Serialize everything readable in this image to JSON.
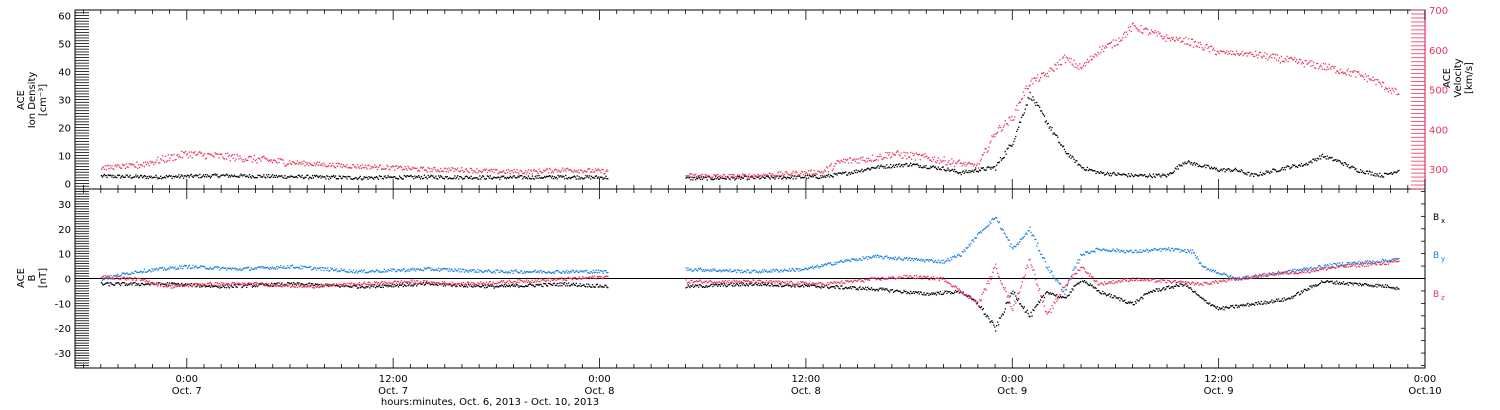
{
  "colors": {
    "black": "#000000",
    "pink": "#e8365d",
    "blue": "#1a7fe0"
  },
  "chart_data": [
    {
      "type": "scatter",
      "ylabel": [
        "ACE",
        "Ion Density",
        "[cm⁻³]"
      ],
      "y2label": [
        "ACE",
        "Velocity",
        "[km/s]"
      ],
      "ylim": [
        -2,
        62
      ],
      "y2lim": [
        250,
        700
      ],
      "yticks": [
        0,
        10,
        20,
        30,
        40,
        50,
        60
      ],
      "y2ticks": [
        300,
        400,
        500,
        600,
        700
      ],
      "xlim": [
        -6.5,
        72
      ],
      "series": [
        {
          "color": "#000000",
          "axis": "left",
          "segments": [
            [
              -5,
              2.8
            ],
            [
              -2,
              2.5
            ],
            [
              2,
              3
            ],
            [
              6,
              2.6
            ],
            [
              10,
              2.2
            ],
            [
              14,
              2.5
            ],
            [
              18,
              2.3
            ],
            [
              22,
              2.5
            ],
            [
              24.5,
              2.3
            ]
          ]
        },
        {
          "color": "#000000",
          "axis": "left",
          "segments": [
            [
              29,
              2.0
            ],
            [
              33,
              2.2
            ],
            [
              37,
              2.6
            ],
            [
              38.5,
              4
            ],
            [
              40,
              6
            ],
            [
              42,
              7
            ],
            [
              44,
              5.5
            ],
            [
              45,
              4
            ],
            [
              47,
              6
            ],
            [
              48,
              15
            ],
            [
              49,
              32
            ],
            [
              50,
              22
            ],
            [
              51,
              12
            ],
            [
              52,
              6
            ],
            [
              53,
              4
            ],
            [
              55,
              3
            ],
            [
              57,
              3
            ],
            [
              58,
              8
            ],
            [
              60,
              5
            ],
            [
              61,
              5
            ],
            [
              62,
              3
            ],
            [
              64,
              6
            ],
            [
              65,
              7
            ],
            [
              66,
              10
            ],
            [
              67,
              8
            ],
            [
              68,
              5
            ],
            [
              69.5,
              3
            ],
            [
              70,
              4
            ],
            [
              70.5,
              5
            ]
          ]
        },
        {
          "color": "#e8365d",
          "axis": "right",
          "segments": [
            [
              -5,
              305
            ],
            [
              -3,
              310
            ],
            [
              0,
              340
            ],
            [
              3,
              330
            ],
            [
              6,
              318
            ],
            [
              9,
              310
            ],
            [
              12,
              305
            ],
            [
              14,
              300
            ],
            [
              16,
              300
            ],
            [
              18,
              295
            ],
            [
              20,
              295
            ],
            [
              22,
              300
            ],
            [
              24.5,
              295
            ]
          ]
        },
        {
          "color": "#e8365d",
          "axis": "right",
          "segments": [
            [
              29,
              285
            ],
            [
              32,
              283
            ],
            [
              35,
              290
            ],
            [
              37,
              295
            ],
            [
              38,
              320
            ],
            [
              40,
              330
            ],
            [
              41,
              340
            ],
            [
              43,
              330
            ],
            [
              45,
              315
            ],
            [
              46,
              310
            ],
            [
              47,
              395
            ],
            [
              48,
              430
            ],
            [
              48.5,
              480
            ],
            [
              49,
              520
            ],
            [
              50,
              540
            ],
            [
              51,
              580
            ],
            [
              52,
              555
            ],
            [
              53,
              600
            ],
            [
              54,
              620
            ],
            [
              55,
              660
            ],
            [
              56,
              645
            ],
            [
              57,
              630
            ],
            [
              58,
              625
            ],
            [
              59,
              610
            ],
            [
              60,
              595
            ],
            [
              62,
              590
            ],
            [
              64,
              575
            ],
            [
              66,
              560
            ],
            [
              68,
              540
            ],
            [
              69,
              525
            ],
            [
              70,
              500
            ],
            [
              70.5,
              490
            ]
          ]
        }
      ]
    },
    {
      "type": "scatter",
      "ylabel": [
        "ACE",
        "B",
        "[nT]"
      ],
      "ylim": [
        -36,
        36
      ],
      "yticks": [
        -30,
        -20,
        -10,
        0,
        10,
        20,
        30
      ],
      "xlim": [
        -6.5,
        72
      ],
      "zero_line": true,
      "xtick_labels": [
        {
          "t": 0,
          "time": "0:00",
          "date": "Oct. 7"
        },
        {
          "t": 12,
          "time": "12:00",
          "date": "Oct. 7"
        },
        {
          "t": 24,
          "time": "0:00",
          "date": "Oct. 8"
        },
        {
          "t": 36,
          "time": "12:00",
          "date": "Oct. 8"
        },
        {
          "t": 48,
          "time": "0:00",
          "date": "Oct. 9"
        },
        {
          "t": 60,
          "time": "12:00",
          "date": "Oct. 9"
        },
        {
          "t": 72,
          "time": "0:00",
          "date": "Oct.10"
        }
      ],
      "xlabel": "hours:minutes, Oct.  6, 2013 - Oct. 10, 2013",
      "legend": [
        {
          "label": "B",
          "sub": "x",
          "color": "#000000"
        },
        {
          "label": "B",
          "sub": "y",
          "color": "#1a7fe0"
        },
        {
          "label": "B",
          "sub": "z",
          "color": "#e8365d"
        }
      ],
      "series": [
        {
          "name": "Bx",
          "color": "#000000",
          "segments": [
            [
              -5,
              -2
            ],
            [
              -1,
              -2
            ],
            [
              2,
              -3
            ],
            [
              6,
              -2
            ],
            [
              10,
              -3
            ],
            [
              14,
              -2
            ],
            [
              18,
              -3
            ],
            [
              22,
              -2
            ],
            [
              24.5,
              -3
            ]
          ]
        },
        {
          "name": "Bx",
          "color": "#000000",
          "segments": [
            [
              29,
              -3
            ],
            [
              33,
              -2
            ],
            [
              37,
              -3
            ],
            [
              40,
              -4
            ],
            [
              43,
              -6
            ],
            [
              45,
              -5
            ],
            [
              46,
              -10
            ],
            [
              47,
              -20
            ],
            [
              48,
              -5
            ],
            [
              49,
              -15
            ],
            [
              50,
              -5
            ],
            [
              51,
              -8
            ],
            [
              52,
              0
            ],
            [
              53,
              -5
            ],
            [
              55,
              -10
            ],
            [
              56,
              -5
            ],
            [
              58,
              -2
            ],
            [
              59,
              -8
            ],
            [
              60,
              -12
            ],
            [
              62,
              -10
            ],
            [
              64,
              -8
            ],
            [
              66,
              -1
            ],
            [
              68,
              -2
            ],
            [
              70,
              -3
            ],
            [
              70.5,
              -4
            ]
          ]
        },
        {
          "name": "By",
          "color": "#1a7fe0",
          "segments": [
            [
              -5,
              0
            ],
            [
              -3,
              3
            ],
            [
              0,
              5
            ],
            [
              3,
              4
            ],
            [
              6,
              5
            ],
            [
              10,
              3
            ],
            [
              14,
              4
            ],
            [
              18,
              3
            ],
            [
              22,
              3
            ],
            [
              24.5,
              3
            ]
          ]
        },
        {
          "name": "By",
          "color": "#1a7fe0",
          "segments": [
            [
              29,
              4
            ],
            [
              33,
              3
            ],
            [
              36,
              4
            ],
            [
              38,
              7
            ],
            [
              40,
              9
            ],
            [
              42,
              8
            ],
            [
              44,
              7
            ],
            [
              45,
              10
            ],
            [
              46,
              18
            ],
            [
              47,
              25
            ],
            [
              48,
              12
            ],
            [
              49,
              20
            ],
            [
              50,
              5
            ],
            [
              51,
              -5
            ],
            [
              52,
              10
            ],
            [
              53,
              12
            ],
            [
              55,
              11
            ],
            [
              57,
              12
            ],
            [
              58.5,
              11
            ],
            [
              59,
              5
            ],
            [
              61,
              0
            ],
            [
              63,
              2
            ],
            [
              65,
              4
            ],
            [
              67,
              6
            ],
            [
              69,
              7
            ],
            [
              70.5,
              8
            ]
          ]
        },
        {
          "name": "Bz",
          "color": "#e8365d",
          "segments": [
            [
              -5,
              1
            ],
            [
              -3,
              0
            ],
            [
              -1,
              -3
            ],
            [
              1,
              -2
            ],
            [
              4,
              -2
            ],
            [
              7,
              -3
            ],
            [
              10,
              -2
            ],
            [
              13,
              -1
            ],
            [
              16,
              -2
            ],
            [
              19,
              -1
            ],
            [
              22,
              0
            ],
            [
              24.5,
              1
            ]
          ]
        },
        {
          "name": "Bz",
          "color": "#e8365d",
          "segments": [
            [
              29,
              -1
            ],
            [
              33,
              -1
            ],
            [
              37,
              -2
            ],
            [
              40,
              0
            ],
            [
              42,
              1
            ],
            [
              44,
              0
            ],
            [
              45,
              -5
            ],
            [
              46,
              -10
            ],
            [
              47,
              5
            ],
            [
              48,
              -12
            ],
            [
              49,
              8
            ],
            [
              50,
              -15
            ],
            [
              51,
              -3
            ],
            [
              52,
              5
            ],
            [
              53,
              -2
            ],
            [
              55,
              0
            ],
            [
              57,
              -1
            ],
            [
              59,
              -2
            ],
            [
              61,
              0
            ],
            [
              63,
              2
            ],
            [
              65,
              3
            ],
            [
              67,
              5
            ],
            [
              69,
              6
            ],
            [
              70.5,
              7
            ]
          ]
        }
      ]
    }
  ]
}
